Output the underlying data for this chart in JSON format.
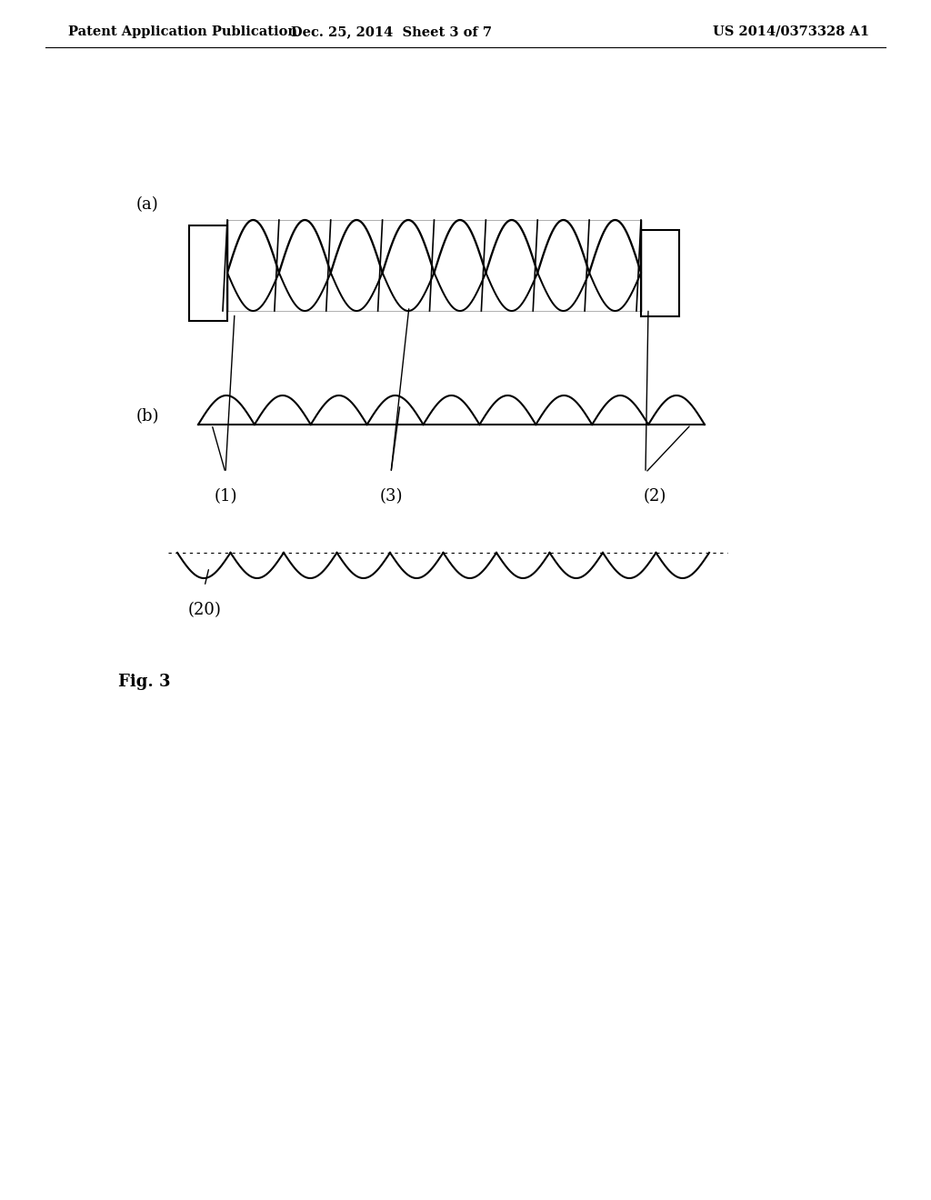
{
  "background_color": "#ffffff",
  "header_left": "Patent Application Publication",
  "header_mid": "Dec. 25, 2014  Sheet 3 of 7",
  "header_right": "US 2014/0373328 A1",
  "line_color": "#000000",
  "line_width": 1.5,
  "label_a": "(a)",
  "label_b": "(b)",
  "label_1": "(1)",
  "label_2": "(2)",
  "label_3": "(3)",
  "label_20": "(20)",
  "fig_label": "Fig. 3",
  "header_fontsize": 10.5,
  "label_fontsize": 13,
  "fig_fontsize": 13
}
